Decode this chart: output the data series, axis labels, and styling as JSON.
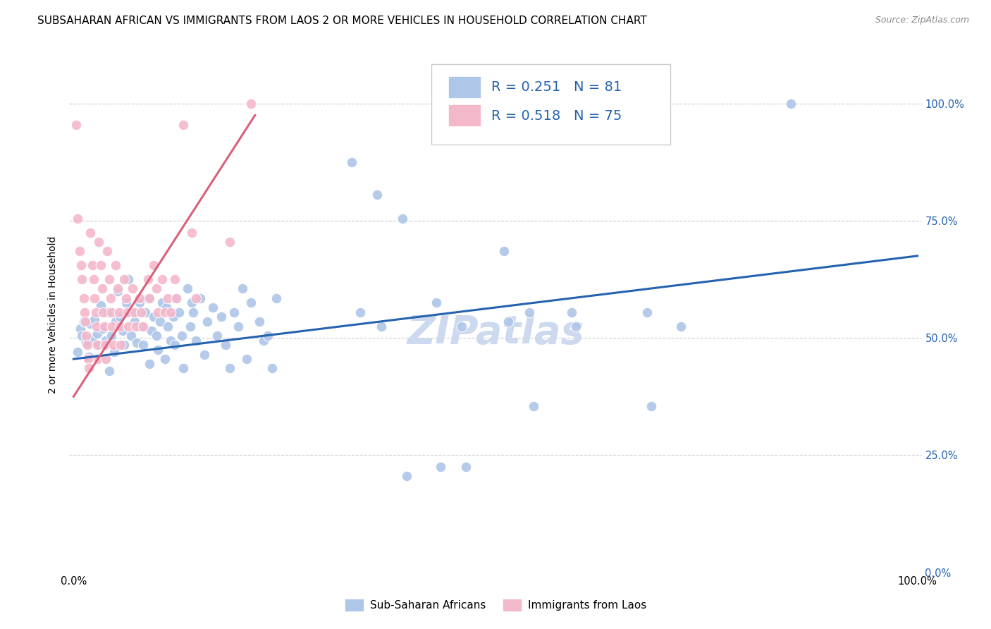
{
  "title": "SUBSAHARAN AFRICAN VS IMMIGRANTS FROM LAOS 2 OR MORE VEHICLES IN HOUSEHOLD CORRELATION CHART",
  "source": "Source: ZipAtlas.com",
  "ylabel": "2 or more Vehicles in Household",
  "watermark": "ZIPatlas",
  "legend_r1": "0.251",
  "legend_n1": "81",
  "legend_r2": "0.518",
  "legend_n2": "75",
  "blue_color": "#aec6e8",
  "pink_color": "#f4b8cb",
  "blue_line_color": "#2563b0",
  "pink_line_color": "#d9607a",
  "text_blue": "#2563b0",
  "blue_scatter": [
    [
      0.005,
      0.47
    ],
    [
      0.008,
      0.52
    ],
    [
      0.01,
      0.505
    ],
    [
      0.012,
      0.535
    ],
    [
      0.015,
      0.49
    ],
    [
      0.018,
      0.46
    ],
    [
      0.02,
      0.53
    ],
    [
      0.022,
      0.5
    ],
    [
      0.025,
      0.54
    ],
    [
      0.028,
      0.51
    ],
    [
      0.03,
      0.485
    ],
    [
      0.032,
      0.57
    ],
    [
      0.035,
      0.52
    ],
    [
      0.038,
      0.495
    ],
    [
      0.04,
      0.555
    ],
    [
      0.042,
      0.43
    ],
    [
      0.045,
      0.505
    ],
    [
      0.048,
      0.47
    ],
    [
      0.05,
      0.535
    ],
    [
      0.052,
      0.6
    ],
    [
      0.055,
      0.545
    ],
    [
      0.058,
      0.515
    ],
    [
      0.06,
      0.485
    ],
    [
      0.062,
      0.575
    ],
    [
      0.065,
      0.625
    ],
    [
      0.068,
      0.505
    ],
    [
      0.07,
      0.555
    ],
    [
      0.072,
      0.535
    ],
    [
      0.075,
      0.49
    ],
    [
      0.078,
      0.575
    ],
    [
      0.08,
      0.525
    ],
    [
      0.082,
      0.485
    ],
    [
      0.085,
      0.555
    ],
    [
      0.088,
      0.585
    ],
    [
      0.09,
      0.445
    ],
    [
      0.092,
      0.515
    ],
    [
      0.095,
      0.545
    ],
    [
      0.098,
      0.505
    ],
    [
      0.1,
      0.475
    ],
    [
      0.102,
      0.535
    ],
    [
      0.105,
      0.575
    ],
    [
      0.108,
      0.455
    ],
    [
      0.11,
      0.565
    ],
    [
      0.112,
      0.525
    ],
    [
      0.115,
      0.495
    ],
    [
      0.118,
      0.545
    ],
    [
      0.12,
      0.485
    ],
    [
      0.122,
      0.585
    ],
    [
      0.125,
      0.555
    ],
    [
      0.128,
      0.505
    ],
    [
      0.13,
      0.435
    ],
    [
      0.135,
      0.605
    ],
    [
      0.138,
      0.525
    ],
    [
      0.14,
      0.575
    ],
    [
      0.142,
      0.555
    ],
    [
      0.145,
      0.495
    ],
    [
      0.15,
      0.585
    ],
    [
      0.155,
      0.465
    ],
    [
      0.158,
      0.535
    ],
    [
      0.165,
      0.565
    ],
    [
      0.17,
      0.505
    ],
    [
      0.175,
      0.545
    ],
    [
      0.18,
      0.485
    ],
    [
      0.185,
      0.435
    ],
    [
      0.19,
      0.555
    ],
    [
      0.195,
      0.525
    ],
    [
      0.2,
      0.605
    ],
    [
      0.205,
      0.455
    ],
    [
      0.21,
      0.575
    ],
    [
      0.22,
      0.535
    ],
    [
      0.225,
      0.495
    ],
    [
      0.23,
      0.505
    ],
    [
      0.235,
      0.435
    ],
    [
      0.24,
      0.585
    ],
    [
      0.33,
      0.875
    ],
    [
      0.34,
      0.555
    ],
    [
      0.36,
      0.805
    ],
    [
      0.365,
      0.525
    ],
    [
      0.39,
      0.755
    ],
    [
      0.395,
      0.205
    ],
    [
      0.43,
      0.575
    ],
    [
      0.435,
      0.225
    ],
    [
      0.46,
      0.525
    ],
    [
      0.465,
      0.225
    ],
    [
      0.51,
      0.685
    ],
    [
      0.515,
      0.535
    ],
    [
      0.54,
      0.555
    ],
    [
      0.545,
      0.355
    ],
    [
      0.59,
      0.555
    ],
    [
      0.595,
      0.525
    ],
    [
      0.68,
      0.555
    ],
    [
      0.685,
      0.355
    ],
    [
      0.72,
      0.525
    ],
    [
      0.85,
      1.0
    ]
  ],
  "pink_scatter": [
    [
      0.003,
      0.955
    ],
    [
      0.005,
      0.755
    ],
    [
      0.007,
      0.685
    ],
    [
      0.009,
      0.655
    ],
    [
      0.01,
      0.625
    ],
    [
      0.012,
      0.585
    ],
    [
      0.013,
      0.555
    ],
    [
      0.014,
      0.535
    ],
    [
      0.015,
      0.505
    ],
    [
      0.016,
      0.485
    ],
    [
      0.017,
      0.455
    ],
    [
      0.018,
      0.435
    ],
    [
      0.02,
      0.725
    ],
    [
      0.022,
      0.655
    ],
    [
      0.024,
      0.625
    ],
    [
      0.025,
      0.585
    ],
    [
      0.026,
      0.555
    ],
    [
      0.027,
      0.525
    ],
    [
      0.028,
      0.485
    ],
    [
      0.029,
      0.455
    ],
    [
      0.03,
      0.705
    ],
    [
      0.032,
      0.655
    ],
    [
      0.034,
      0.605
    ],
    [
      0.035,
      0.555
    ],
    [
      0.036,
      0.525
    ],
    [
      0.037,
      0.485
    ],
    [
      0.038,
      0.455
    ],
    [
      0.04,
      0.685
    ],
    [
      0.042,
      0.625
    ],
    [
      0.044,
      0.585
    ],
    [
      0.045,
      0.555
    ],
    [
      0.046,
      0.525
    ],
    [
      0.047,
      0.485
    ],
    [
      0.05,
      0.655
    ],
    [
      0.052,
      0.605
    ],
    [
      0.054,
      0.555
    ],
    [
      0.055,
      0.525
    ],
    [
      0.056,
      0.485
    ],
    [
      0.06,
      0.625
    ],
    [
      0.062,
      0.585
    ],
    [
      0.064,
      0.555
    ],
    [
      0.065,
      0.525
    ],
    [
      0.07,
      0.605
    ],
    [
      0.072,
      0.555
    ],
    [
      0.074,
      0.525
    ],
    [
      0.078,
      0.585
    ],
    [
      0.08,
      0.555
    ],
    [
      0.082,
      0.525
    ],
    [
      0.088,
      0.625
    ],
    [
      0.09,
      0.585
    ],
    [
      0.095,
      0.655
    ],
    [
      0.098,
      0.605
    ],
    [
      0.1,
      0.555
    ],
    [
      0.105,
      0.625
    ],
    [
      0.108,
      0.555
    ],
    [
      0.112,
      0.585
    ],
    [
      0.115,
      0.555
    ],
    [
      0.12,
      0.625
    ],
    [
      0.122,
      0.585
    ],
    [
      0.13,
      0.955
    ],
    [
      0.14,
      0.725
    ],
    [
      0.145,
      0.585
    ],
    [
      0.185,
      0.705
    ],
    [
      0.21,
      1.0
    ],
    [
      0.46,
      0.975
    ]
  ],
  "blue_line_x": [
    0.0,
    1.0
  ],
  "blue_line_y": [
    0.455,
    0.675
  ],
  "pink_line_x": [
    0.0,
    0.215
  ],
  "pink_line_y": [
    0.375,
    0.975
  ],
  "xlim": [
    -0.005,
    1.005
  ],
  "ylim": [
    0.0,
    1.1
  ],
  "yticks": [
    0.0,
    0.25,
    0.5,
    0.75,
    1.0
  ],
  "ytick_right_labels": [
    "0.0%",
    "25.0%",
    "50.0%",
    "75.0%",
    "100.0%"
  ],
  "xtick_positions": [
    0.0,
    1.0
  ],
  "xtick_labels": [
    "0.0%",
    "100.0%"
  ],
  "grid_color": "#cccccc",
  "background_color": "#ffffff",
  "title_fontsize": 11,
  "axis_label_fontsize": 10,
  "tick_fontsize": 10.5,
  "legend_fontsize": 14,
  "watermark_fontsize": 40,
  "watermark_color": "#ccd9ee",
  "right_tick_color": "#2563b0",
  "bottom_legend_labels": [
    "Sub-Saharan Africans",
    "Immigrants from Laos"
  ]
}
